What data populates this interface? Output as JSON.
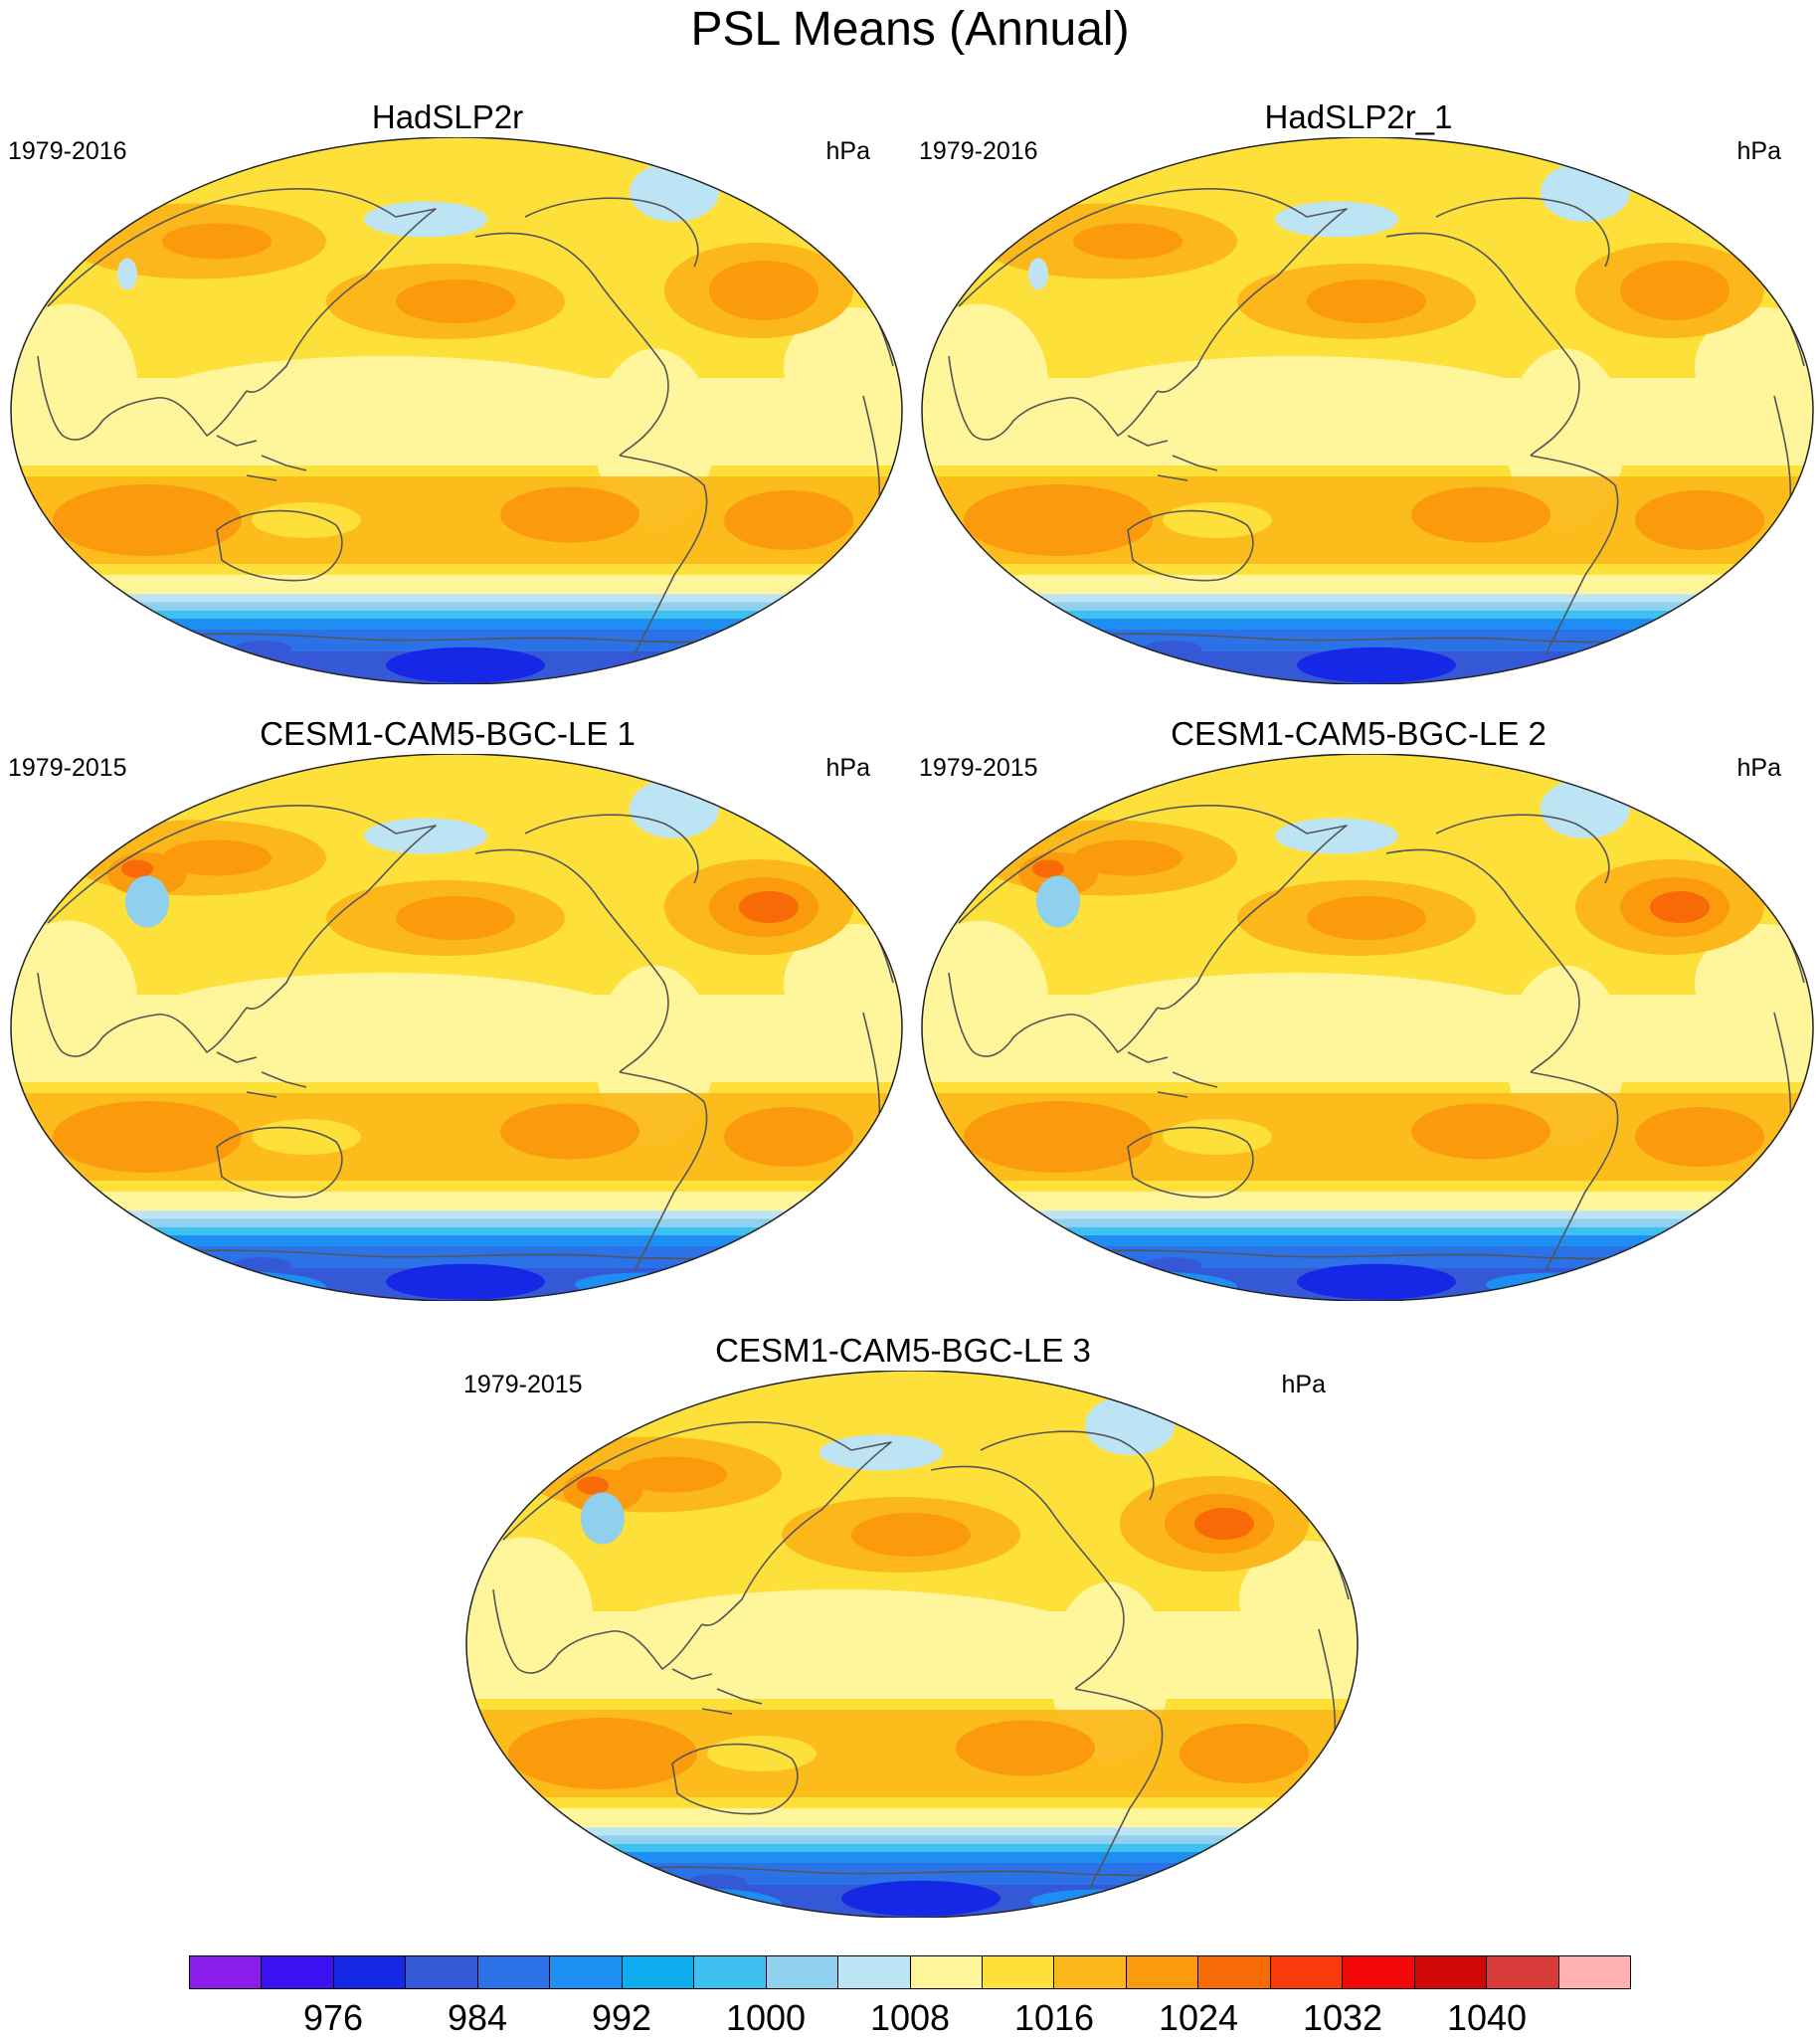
{
  "title": "PSL Means (Annual)",
  "panels": [
    {
      "title": "HadSLP2r",
      "left_label": "1979-2016",
      "right_label": "hPa",
      "variant": "obs"
    },
    {
      "title": "HadSLP2r_1",
      "left_label": "1979-2016",
      "right_label": "hPa",
      "variant": "obs"
    },
    {
      "title": "CESM1-CAM5-BGC-LE 1",
      "left_label": "1979-2015",
      "right_label": "hPa",
      "variant": "model"
    },
    {
      "title": "CESM1-CAM5-BGC-LE 2",
      "left_label": "1979-2015",
      "right_label": "hPa",
      "variant": "model"
    },
    {
      "title": "CESM1-CAM5-BGC-LE 3",
      "left_label": "1979-2015",
      "right_label": "hPa",
      "variant": "model"
    }
  ],
  "colorbar": {
    "units": "hPa",
    "colors": [
      "#8a1ee8",
      "#3b10f2",
      "#1628e6",
      "#3559d6",
      "#2b72e8",
      "#1e8ff2",
      "#10acf0",
      "#3ec0f0",
      "#8ed0ee",
      "#bde4f4",
      "#fff59a",
      "#fde03a",
      "#fcb81a",
      "#fa9a0c",
      "#f86a06",
      "#f83a0c",
      "#f40808",
      "#d00808",
      "#d83a3a",
      "#ffb0b0"
    ],
    "tick_labels": [
      "976",
      "984",
      "992",
      "1000",
      "1008",
      "1016",
      "1024",
      "1032",
      "1040"
    ]
  },
  "map_colors": {
    "yellow_light": "#fff59a",
    "yellow": "#fde03a",
    "orange_light": "#fcb81a",
    "orange": "#fa9a0c",
    "orange_dark": "#f86a06",
    "blue_pale": "#bde4f4",
    "blue_light": "#8ed0ee",
    "blue_sky": "#3ec0f0",
    "blue": "#1e8ff2",
    "blue_mid": "#2b72e8",
    "blue_dark": "#3559d6",
    "blue_deep": "#1628e6",
    "coast": "#555555"
  }
}
